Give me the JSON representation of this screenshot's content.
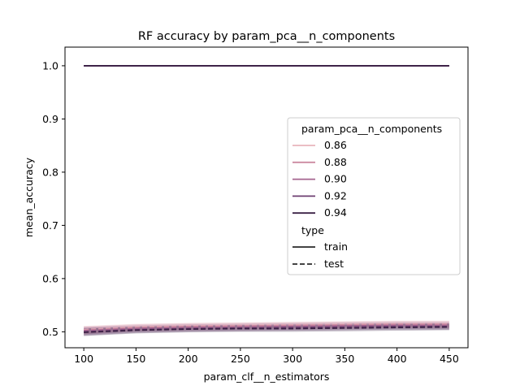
{
  "chart_data": {
    "type": "line",
    "title": "RF accuracy by param_pca__n_components",
    "xlabel": "param_clf__n_estimators",
    "ylabel": "mean_accuracy",
    "x": [
      100,
      150,
      200,
      250,
      300,
      350,
      400,
      450
    ],
    "xlim": [
      82,
      468
    ],
    "ylim": [
      0.47,
      1.035
    ],
    "xticks": [
      100,
      150,
      200,
      250,
      300,
      350,
      400,
      450
    ],
    "yticks": [
      0.5,
      0.6,
      0.7,
      0.8,
      0.9,
      1.0
    ],
    "ytick_labels": [
      "0.5",
      "0.6",
      "0.7",
      "0.8",
      "0.9",
      "1.0"
    ],
    "grid": false,
    "legend": {
      "placement": "center-right",
      "hue_title": "param_pca__n_components",
      "style_title": "type",
      "hue_entries": [
        {
          "label": "0.86",
          "color": "#e8b4bc"
        },
        {
          "label": "0.88",
          "color": "#cc8aa0"
        },
        {
          "label": "0.90",
          "color": "#a5648f"
        },
        {
          "label": "0.92",
          "color": "#6e3f72"
        },
        {
          "label": "0.94",
          "color": "#3b2145"
        }
      ],
      "style_entries": [
        {
          "label": "train",
          "dash": "solid"
        },
        {
          "label": "test",
          "dash": "dashed"
        }
      ]
    },
    "series": [
      {
        "hue": "0.86",
        "type": "train",
        "color": "#e8b4bc",
        "values": [
          1.0,
          1.0,
          1.0,
          1.0,
          1.0,
          1.0,
          1.0,
          1.0
        ]
      },
      {
        "hue": "0.88",
        "type": "train",
        "color": "#cc8aa0",
        "values": [
          1.0,
          1.0,
          1.0,
          1.0,
          1.0,
          1.0,
          1.0,
          1.0
        ]
      },
      {
        "hue": "0.90",
        "type": "train",
        "color": "#a5648f",
        "values": [
          1.0,
          1.0,
          1.0,
          1.0,
          1.0,
          1.0,
          1.0,
          1.0
        ]
      },
      {
        "hue": "0.92",
        "type": "train",
        "color": "#6e3f72",
        "values": [
          1.0,
          1.0,
          1.0,
          1.0,
          1.0,
          1.0,
          1.0,
          1.0
        ]
      },
      {
        "hue": "0.94",
        "type": "train",
        "color": "#3b2145",
        "values": [
          1.0,
          1.0,
          1.0,
          1.0,
          1.0,
          1.0,
          1.0,
          1.0
        ]
      },
      {
        "hue": "0.86",
        "type": "test",
        "color": "#e8b4bc",
        "values": [
          0.504,
          0.509,
          0.511,
          0.512,
          0.513,
          0.514,
          0.515,
          0.515
        ],
        "ci": [
          0.007,
          0.006,
          0.006,
          0.006,
          0.006,
          0.006,
          0.006,
          0.006
        ]
      },
      {
        "hue": "0.88",
        "type": "test",
        "color": "#cc8aa0",
        "values": [
          0.503,
          0.508,
          0.51,
          0.511,
          0.512,
          0.513,
          0.514,
          0.514
        ],
        "ci": [
          0.007,
          0.006,
          0.006,
          0.006,
          0.006,
          0.006,
          0.006,
          0.006
        ]
      },
      {
        "hue": "0.90",
        "type": "test",
        "color": "#a5648f",
        "values": [
          0.502,
          0.506,
          0.508,
          0.509,
          0.51,
          0.511,
          0.512,
          0.512
        ],
        "ci": [
          0.007,
          0.006,
          0.006,
          0.006,
          0.006,
          0.006,
          0.006,
          0.006
        ]
      },
      {
        "hue": "0.92",
        "type": "test",
        "color": "#6e3f72",
        "values": [
          0.5,
          0.504,
          0.506,
          0.507,
          0.508,
          0.509,
          0.51,
          0.51
        ],
        "ci": [
          0.007,
          0.006,
          0.006,
          0.006,
          0.006,
          0.006,
          0.006,
          0.006
        ]
      },
      {
        "hue": "0.94",
        "type": "test",
        "color": "#3b2145",
        "values": [
          0.499,
          0.503,
          0.505,
          0.506,
          0.506,
          0.507,
          0.508,
          0.509
        ],
        "ci": [
          0.007,
          0.006,
          0.006,
          0.006,
          0.006,
          0.006,
          0.006,
          0.006
        ]
      }
    ]
  }
}
